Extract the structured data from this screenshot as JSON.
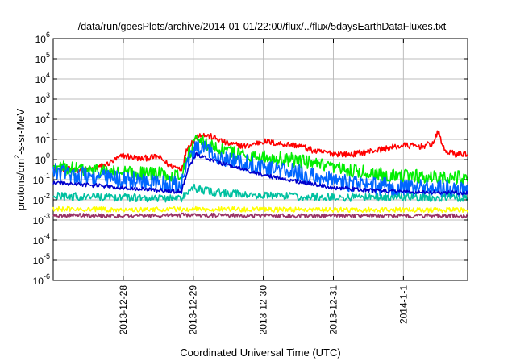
{
  "chart_data": {
    "type": "line",
    "title": "/data/run/goesPlots/archive/2014-01-01/22:00/flux/../flux/5daysEarthDataFluxes.txt",
    "xlabel": "Coordinated Universal Time (UTC)",
    "ylabel": {
      "prefix": "protons/cm",
      "sup": "2",
      "suffix": "-s-sr-MeV"
    },
    "y_scale": "log",
    "ylim": [
      1e-06,
      1000000.0
    ],
    "y_ticks": [
      {
        "value": 1e-06,
        "base": "10",
        "exp": "-6"
      },
      {
        "value": 1e-05,
        "base": "10",
        "exp": "-5"
      },
      {
        "value": 0.0001,
        "base": "10",
        "exp": "-4"
      },
      {
        "value": 0.001,
        "base": "10",
        "exp": "-3"
      },
      {
        "value": 0.01,
        "base": "10",
        "exp": "-2"
      },
      {
        "value": 0.1,
        "base": "10",
        "exp": "-1"
      },
      {
        "value": 1,
        "base": "10",
        "exp": "0"
      },
      {
        "value": 10.0,
        "base": "10",
        "exp": "1"
      },
      {
        "value": 100.0,
        "base": "10",
        "exp": "2"
      },
      {
        "value": 1000.0,
        "base": "10",
        "exp": "3"
      },
      {
        "value": 10000.0,
        "base": "10",
        "exp": "4"
      },
      {
        "value": 100000.0,
        "base": "10",
        "exp": "5"
      },
      {
        "value": 1000000.0,
        "base": "10",
        "exp": "6"
      }
    ],
    "xlim": [
      "2013-12-27 00:00",
      "2014-01-01 22:00"
    ],
    "x_ticks": [
      "2013-12-28",
      "2013-12-29",
      "2013-12-30",
      "2013-12-31",
      "2014-1-1"
    ],
    "x_tick_dates": [
      "2013-12-28 00:00",
      "2013-12-29 00:00",
      "2013-12-30 00:00",
      "2013-12-31 00:00",
      "2014-01-01 00:00"
    ],
    "grid": true,
    "legend": "none",
    "series": [
      {
        "color": "#ff0000",
        "noise": 0.15,
        "points": [
          [
            "2013-12-27 00:00",
            0.35
          ],
          [
            "2013-12-27 12:00",
            0.3
          ],
          [
            "2013-12-27 18:00",
            0.55
          ],
          [
            "2013-12-28 00:00",
            1.6
          ],
          [
            "2013-12-28 06:00",
            1.1
          ],
          [
            "2013-12-28 12:00",
            1.4
          ],
          [
            "2013-12-28 16:00",
            0.5
          ],
          [
            "2013-12-28 20:00",
            0.35
          ],
          [
            "2013-12-28 22:00",
            4
          ],
          [
            "2013-12-29 02:00",
            18
          ],
          [
            "2013-12-29 06:00",
            14
          ],
          [
            "2013-12-29 12:00",
            6
          ],
          [
            "2013-12-29 18:00",
            4.5
          ],
          [
            "2013-12-30 00:00",
            8
          ],
          [
            "2013-12-30 06:00",
            6
          ],
          [
            "2013-12-30 12:00",
            5
          ],
          [
            "2013-12-30 18:00",
            2.5
          ],
          [
            "2013-12-31 00:00",
            2.0
          ],
          [
            "2013-12-31 06:00",
            1.8
          ],
          [
            "2013-12-31 12:00",
            2.5
          ],
          [
            "2013-12-31 18:00",
            3.5
          ],
          [
            "2014-01-01 00:00",
            5
          ],
          [
            "2014-01-01 06:00",
            4.5
          ],
          [
            "2014-01-01 10:00",
            6
          ],
          [
            "2014-01-01 12:00",
            25
          ],
          [
            "2014-01-01 14:00",
            2.8
          ],
          [
            "2014-01-01 18:00",
            1.8
          ],
          [
            "2014-01-01 22:00",
            2.0
          ]
        ]
      },
      {
        "color": "#00ee00",
        "noise": 0.35,
        "points": [
          [
            "2013-12-27 00:00",
            0.4
          ],
          [
            "2013-12-27 12:00",
            0.3
          ],
          [
            "2013-12-28 00:00",
            0.22
          ],
          [
            "2013-12-28 12:00",
            0.2
          ],
          [
            "2013-12-28 20:00",
            0.17
          ],
          [
            "2013-12-28 22:00",
            1.5
          ],
          [
            "2013-12-29 01:00",
            9
          ],
          [
            "2013-12-29 04:00",
            6
          ],
          [
            "2013-12-29 12:00",
            2.5
          ],
          [
            "2013-12-29 18:00",
            1.7
          ],
          [
            "2013-12-30 00:00",
            1.3
          ],
          [
            "2013-12-30 12:00",
            0.9
          ],
          [
            "2013-12-31 00:00",
            0.35
          ],
          [
            "2013-12-31 12:00",
            0.22
          ],
          [
            "2014-01-01 00:00",
            0.15
          ],
          [
            "2014-01-01 22:00",
            0.12
          ]
        ]
      },
      {
        "color": "#0066ff",
        "noise": 0.45,
        "points": [
          [
            "2013-12-27 00:00",
            0.25
          ],
          [
            "2013-12-27 12:00",
            0.15
          ],
          [
            "2013-12-28 00:00",
            0.1
          ],
          [
            "2013-12-28 12:00",
            0.07
          ],
          [
            "2013-12-28 20:00",
            0.05
          ],
          [
            "2013-12-28 22:00",
            0.6
          ],
          [
            "2013-12-29 01:00",
            3.5
          ],
          [
            "2013-12-29 06:00",
            2.5
          ],
          [
            "2013-12-29 12:00",
            1.0
          ],
          [
            "2013-12-30 00:00",
            0.45
          ],
          [
            "2013-12-30 12:00",
            0.2
          ],
          [
            "2013-12-31 00:00",
            0.09
          ],
          [
            "2013-12-31 12:00",
            0.05
          ],
          [
            "2014-01-01 00:00",
            0.04
          ],
          [
            "2014-01-01 22:00",
            0.035
          ]
        ]
      },
      {
        "color": "#0000cc",
        "noise": 0.1,
        "points": [
          [
            "2013-12-27 00:00",
            0.07
          ],
          [
            "2013-12-27 12:00",
            0.055
          ],
          [
            "2013-12-28 00:00",
            0.04
          ],
          [
            "2013-12-28 12:00",
            0.03
          ],
          [
            "2013-12-28 20:00",
            0.025
          ],
          [
            "2013-12-28 22:00",
            0.3
          ],
          [
            "2013-12-29 01:00",
            1.8
          ],
          [
            "2013-12-29 06:00",
            1.0
          ],
          [
            "2013-12-29 12:00",
            0.5
          ],
          [
            "2013-12-30 00:00",
            0.17
          ],
          [
            "2013-12-30 12:00",
            0.08
          ],
          [
            "2013-12-31 00:00",
            0.04
          ],
          [
            "2013-12-31 12:00",
            0.03
          ],
          [
            "2014-01-01 00:00",
            0.025
          ],
          [
            "2014-01-01 22:00",
            0.022
          ]
        ]
      },
      {
        "color": "#00c0a0",
        "noise": 0.2,
        "points": [
          [
            "2013-12-27 00:00",
            0.015
          ],
          [
            "2013-12-28 00:00",
            0.013
          ],
          [
            "2013-12-28 20:00",
            0.012
          ],
          [
            "2013-12-29 00:00",
            0.04
          ],
          [
            "2013-12-29 06:00",
            0.025
          ],
          [
            "2013-12-29 18:00",
            0.018
          ],
          [
            "2013-12-30 12:00",
            0.014
          ],
          [
            "2013-12-31 12:00",
            0.013
          ],
          [
            "2014-01-01 22:00",
            0.013
          ]
        ]
      },
      {
        "color": "#ffff00",
        "noise": 0.12,
        "points": [
          [
            "2013-12-27 00:00",
            0.0035
          ],
          [
            "2013-12-28 00:00",
            0.0033
          ],
          [
            "2013-12-29 00:00",
            0.0035
          ],
          [
            "2013-12-30 00:00",
            0.0033
          ],
          [
            "2013-12-31 00:00",
            0.0032
          ],
          [
            "2014-01-01 22:00",
            0.0032
          ]
        ]
      },
      {
        "color": "#993366",
        "noise": 0.1,
        "points": [
          [
            "2013-12-27 00:00",
            0.0017
          ],
          [
            "2013-12-28 00:00",
            0.0016
          ],
          [
            "2013-12-29 00:00",
            0.0018
          ],
          [
            "2013-12-30 00:00",
            0.0016
          ],
          [
            "2013-12-31 00:00",
            0.0016
          ],
          [
            "2014-01-01 22:00",
            0.0016
          ]
        ]
      }
    ]
  }
}
